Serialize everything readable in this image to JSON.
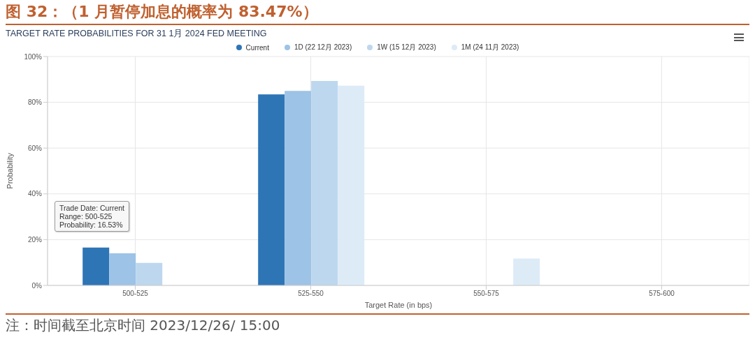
{
  "chart_data": {
    "type": "bar",
    "title": "图 32：（1 月暂停加息的概率为 83.47%）",
    "subtitle": "TARGET RATE PROBABILITIES FOR 31 1月 2024 FED MEETING",
    "xlabel": "Target Rate (in bps)",
    "ylabel": "Probability",
    "categories": [
      "500-525",
      "525-550",
      "550-575",
      "575-600"
    ],
    "series": [
      {
        "name": "Current",
        "color": "#2e75b6",
        "values": [
          16.53,
          83.47,
          0,
          0
        ]
      },
      {
        "name": "1D (22 12月 2023)",
        "color": "#9dc3e6",
        "values": [
          14,
          85,
          0,
          0
        ]
      },
      {
        "name": "1W (15 12月 2023)",
        "color": "#bdd7ee",
        "values": [
          9.8,
          89.3,
          0,
          0
        ]
      },
      {
        "name": "1M (24 11月 2023)",
        "color": "#ddebf7",
        "values": [
          0,
          87.3,
          11.7,
          0
        ]
      }
    ],
    "ylim": [
      0,
      100
    ],
    "yticks": [
      {
        "value": 0,
        "label": "0%"
      },
      {
        "value": 20,
        "label": "20%"
      },
      {
        "value": 40,
        "label": "40%"
      },
      {
        "value": 60,
        "label": "60%"
      },
      {
        "value": 80,
        "label": "80%"
      },
      {
        "value": 100,
        "label": "100%"
      }
    ],
    "grid": true,
    "legend": "top",
    "annotations": [
      "Trade Date: Current\nRange: 500-525\nProbability: 16.53%",
      "注：时间截至北京时间 2023/12/26/ 15:00"
    ]
  }
}
